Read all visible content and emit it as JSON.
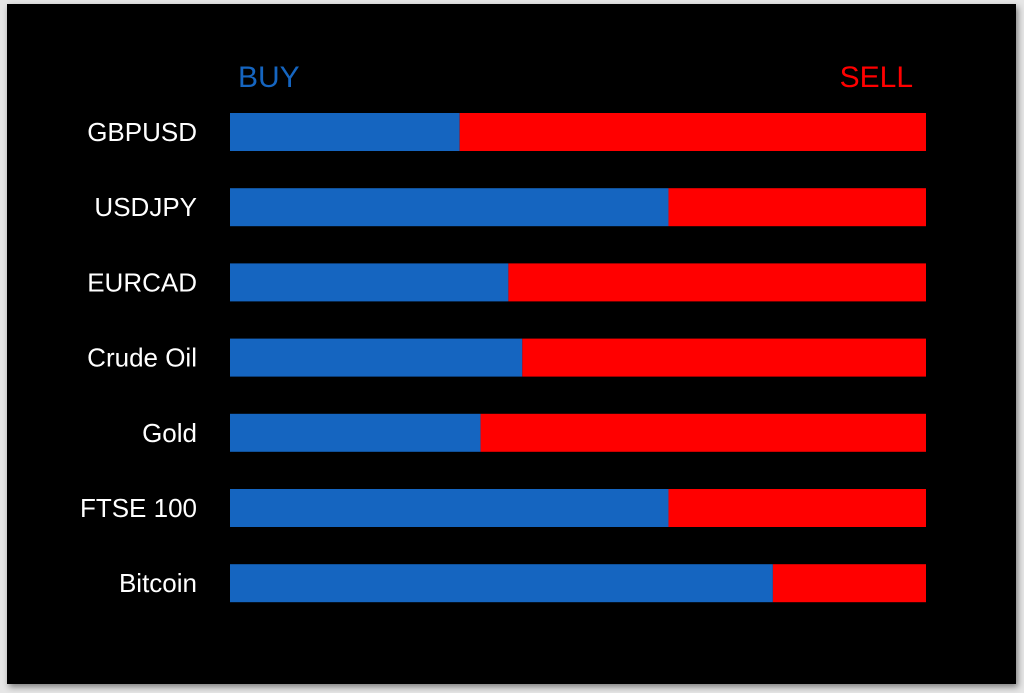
{
  "chart_data": {
    "type": "bar",
    "stacked": true,
    "orientation": "horizontal",
    "legend": {
      "buy_label": "BUY",
      "sell_label": "SELL"
    },
    "categories": [
      "GBPUSD",
      "USDJPY",
      "EURCAD",
      "Crude Oil",
      "Gold",
      "FTSE 100",
      "Bitcoin"
    ],
    "series": [
      {
        "name": "BUY",
        "color": "#1565c0",
        "values": [
          33,
          63,
          40,
          42,
          36,
          63,
          78
        ]
      },
      {
        "name": "SELL",
        "color": "#ff0000",
        "values": [
          67,
          37,
          60,
          58,
          64,
          37,
          22
        ]
      }
    ]
  }
}
